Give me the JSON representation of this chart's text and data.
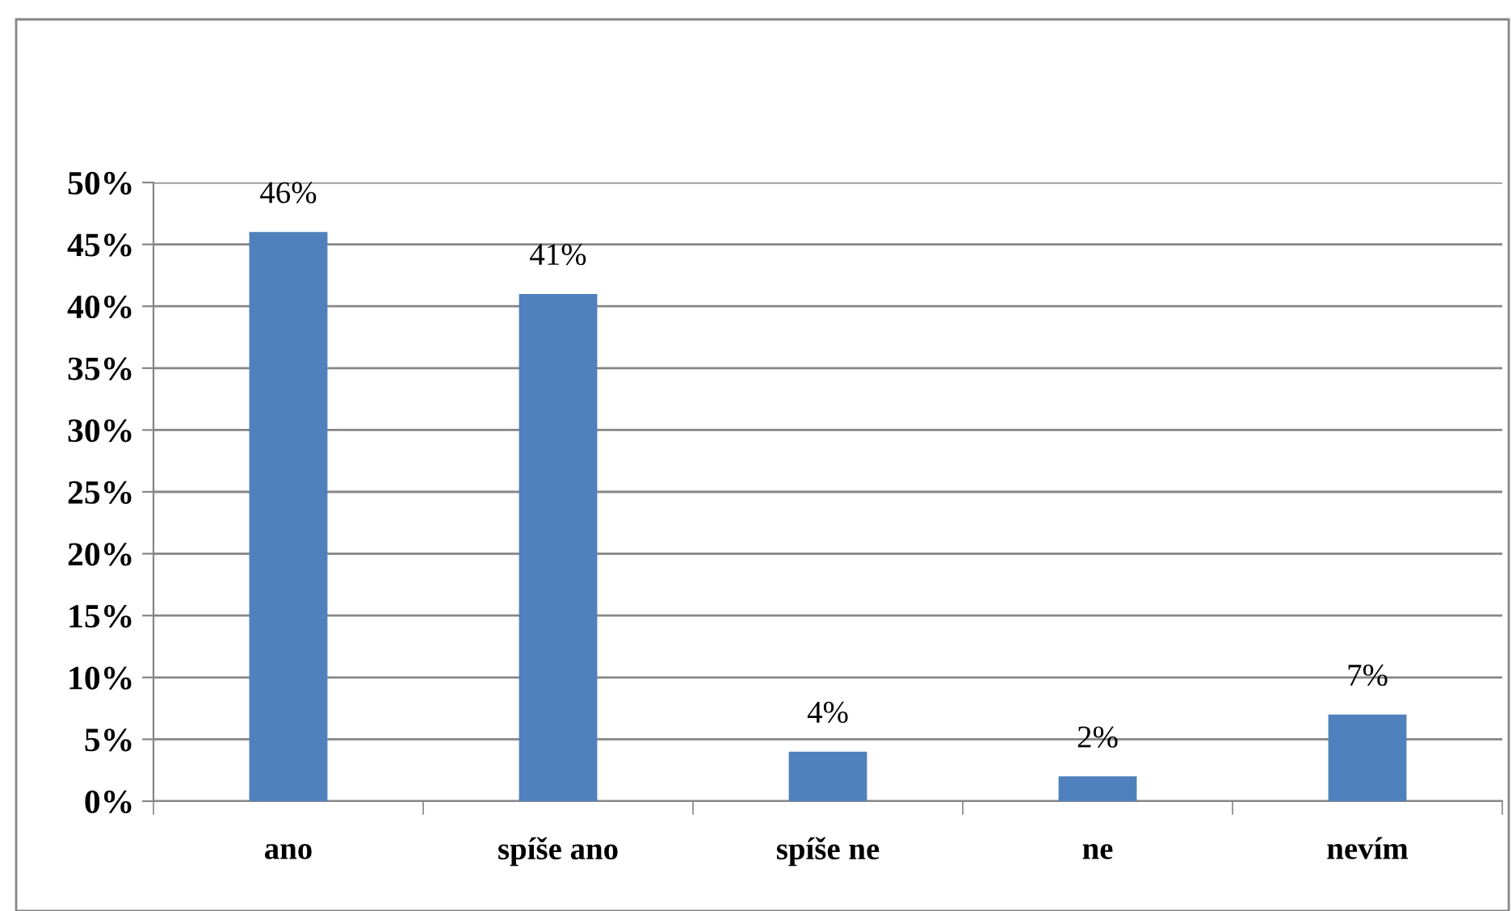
{
  "chart_data": {
    "type": "bar",
    "categories": [
      "ano",
      "spíše ano",
      "spíše ne",
      "ne",
      "nevím"
    ],
    "values": [
      46,
      41,
      4,
      2,
      7
    ],
    "value_labels": [
      "46%",
      "41%",
      "4%",
      "2%",
      "7%"
    ],
    "color": "#4f81bd",
    "ylim": [
      0,
      50
    ],
    "yticks": [
      {
        "value": 0,
        "label": "0%"
      },
      {
        "value": 5,
        "label": "5%"
      },
      {
        "value": 10,
        "label": "10%"
      },
      {
        "value": 15,
        "label": "15%"
      },
      {
        "value": 20,
        "label": "20%"
      },
      {
        "value": 25,
        "label": "25%"
      },
      {
        "value": 30,
        "label": "30%"
      },
      {
        "value": 35,
        "label": "35%"
      },
      {
        "value": 40,
        "label": "40%"
      },
      {
        "value": 45,
        "label": "45%"
      },
      {
        "value": 50,
        "label": "50%"
      }
    ],
    "grid": "y"
  }
}
